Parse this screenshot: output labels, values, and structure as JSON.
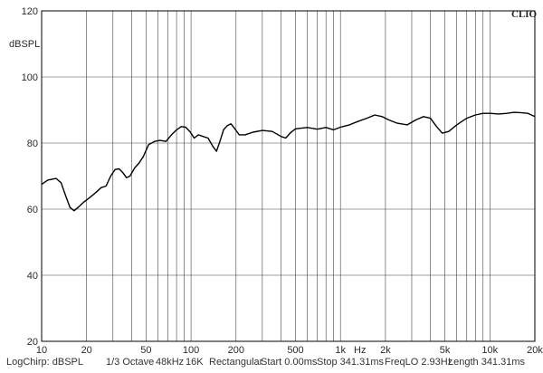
{
  "brand": "CLIO",
  "chart_data": {
    "type": "line",
    "xscale": "log",
    "xlim": [
      10,
      20000
    ],
    "ylim": [
      20,
      120
    ],
    "ylabel": "dBSPL",
    "grid": true,
    "y_ticks": [
      {
        "value": 120,
        "label": "120"
      },
      {
        "value": 100,
        "label": "100"
      },
      {
        "value": 80,
        "label": "80"
      },
      {
        "value": 60,
        "label": "60"
      },
      {
        "value": 40,
        "label": "40"
      },
      {
        "value": 20,
        "label": "20"
      }
    ],
    "x_ticks": [
      {
        "value": 10,
        "label": "10"
      },
      {
        "value": 20,
        "label": "20"
      },
      {
        "value": 50,
        "label": "50"
      },
      {
        "value": 100,
        "label": "100"
      },
      {
        "value": 200,
        "label": "200"
      },
      {
        "value": 500,
        "label": "500"
      },
      {
        "value": 1000,
        "label": "1k"
      },
      {
        "value": 2000,
        "label": "2k"
      },
      {
        "value": 5000,
        "label": "5k"
      },
      {
        "value": 10000,
        "label": "10k"
      },
      {
        "value": 20000,
        "label": "20k"
      }
    ],
    "x_unit_label": "Hz",
    "series": [
      {
        "color": "#000000",
        "points": [
          [
            10,
            67.5
          ],
          [
            11,
            68.8
          ],
          [
            12.5,
            69.3
          ],
          [
            13.5,
            68.0
          ],
          [
            14.5,
            64.0
          ],
          [
            15.5,
            60.5
          ],
          [
            16.5,
            59.5
          ],
          [
            17.5,
            60.5
          ],
          [
            19,
            62.0
          ],
          [
            21,
            63.5
          ],
          [
            23,
            65.0
          ],
          [
            25,
            66.5
          ],
          [
            27,
            67.0
          ],
          [
            29,
            70.0
          ],
          [
            31,
            72.0
          ],
          [
            33,
            72.2
          ],
          [
            35,
            71.0
          ],
          [
            37,
            69.5
          ],
          [
            39,
            70.0
          ],
          [
            42,
            72.5
          ],
          [
            45,
            74.0
          ],
          [
            48,
            76.0
          ],
          [
            52,
            79.5
          ],
          [
            57,
            80.5
          ],
          [
            62,
            80.8
          ],
          [
            68,
            80.5
          ],
          [
            74,
            82.5
          ],
          [
            80,
            84.0
          ],
          [
            86,
            85.0
          ],
          [
            92,
            84.8
          ],
          [
            98,
            83.5
          ],
          [
            105,
            81.5
          ],
          [
            112,
            82.5
          ],
          [
            120,
            82.0
          ],
          [
            130,
            81.5
          ],
          [
            140,
            79.0
          ],
          [
            148,
            77.5
          ],
          [
            156,
            80.5
          ],
          [
            165,
            84.0
          ],
          [
            175,
            85.3
          ],
          [
            185,
            85.8
          ],
          [
            195,
            84.5
          ],
          [
            210,
            82.5
          ],
          [
            230,
            82.5
          ],
          [
            260,
            83.3
          ],
          [
            300,
            83.8
          ],
          [
            350,
            83.5
          ],
          [
            400,
            82.0
          ],
          [
            430,
            81.5
          ],
          [
            460,
            83.0
          ],
          [
            500,
            84.3
          ],
          [
            600,
            84.7
          ],
          [
            700,
            84.2
          ],
          [
            800,
            84.7
          ],
          [
            900,
            84.0
          ],
          [
            1000,
            84.8
          ],
          [
            1150,
            85.5
          ],
          [
            1300,
            86.5
          ],
          [
            1500,
            87.5
          ],
          [
            1700,
            88.5
          ],
          [
            1900,
            88.0
          ],
          [
            2100,
            87.0
          ],
          [
            2400,
            86.0
          ],
          [
            2800,
            85.5
          ],
          [
            3200,
            87.0
          ],
          [
            3600,
            88.0
          ],
          [
            4000,
            87.5
          ],
          [
            4400,
            85.0
          ],
          [
            4800,
            83.0
          ],
          [
            5300,
            83.5
          ],
          [
            6000,
            85.5
          ],
          [
            7000,
            87.5
          ],
          [
            8000,
            88.5
          ],
          [
            9000,
            89.0
          ],
          [
            10000,
            89.0
          ],
          [
            11500,
            88.8
          ],
          [
            13000,
            89.0
          ],
          [
            14500,
            89.3
          ],
          [
            16000,
            89.2
          ],
          [
            18000,
            89.0
          ],
          [
            20000,
            88.0
          ]
        ]
      }
    ]
  },
  "footer": {
    "items": [
      "LogChirp: dBSPL",
      "1/3 Octave",
      "48kHz",
      "16K",
      "Rectangular",
      "Start 0.00ms",
      "Stop 341.31ms",
      "FreqLO 2.93Hz",
      "Length 341.31ms"
    ]
  }
}
